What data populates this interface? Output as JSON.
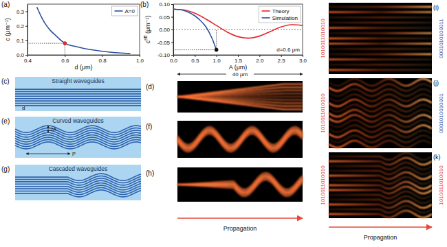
{
  "chart_data": [
    {
      "type": "line",
      "panel_label": "(a)",
      "x_label": "d (μm)",
      "y_label": "c (μm⁻¹)",
      "x": [
        0.45,
        0.475,
        0.5,
        0.525,
        0.55,
        0.575,
        0.6,
        0.65,
        0.7,
        0.75,
        0.8,
        0.85,
        0.9,
        0.95
      ],
      "series": [
        {
          "name": "A=0",
          "color": "#2b4f9e",
          "values": [
            0.33,
            0.26,
            0.205,
            0.165,
            0.135,
            0.105,
            0.08,
            0.06,
            0.045,
            0.034,
            0.025,
            0.018,
            0.013,
            0.009
          ]
        }
      ],
      "highlight": {
        "x": 0.6,
        "y": 0.08,
        "color": "#e3262a"
      },
      "xlim": [
        0.4,
        1.0
      ],
      "ylim": [
        0,
        0.35
      ],
      "xticks": [
        0.4,
        0.6,
        0.8,
        {
          "value": 1,
          "label": "1.0"
        }
      ],
      "yticks": [
        {
          "value": 0,
          "label": "0.0"
        },
        0.1,
        0.2,
        0.3
      ],
      "legend": "upper right"
    },
    {
      "type": "line",
      "panel_label": "(b)",
      "x_label": "A (μm)",
      "y_label": "c",
      "y_label_superscript": "eff",
      "y_label_unit": "(μm⁻¹)",
      "annotation": "d=0.6 μm",
      "series": [
        {
          "name": "Theory",
          "color": "#e3262a",
          "x": [
            0,
            0.25,
            0.5,
            0.75,
            1,
            1.25,
            1.5,
            1.75,
            2,
            2.25,
            2.5,
            2.75,
            3
          ],
          "values": [
            0.08,
            0.077,
            0.064,
            0.042,
            0.016,
            -0.01,
            -0.028,
            -0.034,
            -0.026,
            -0.008,
            0.01,
            0.019,
            0.016
          ]
        },
        {
          "name": "Simulation",
          "color": "#2b4f9e",
          "x": [
            0,
            0.2,
            0.4,
            0.6,
            0.75,
            0.9,
            1.0
          ],
          "values": [
            0.08,
            0.077,
            0.064,
            0.04,
            0.012,
            -0.035,
            -0.08
          ]
        }
      ],
      "highlight": {
        "x": 1.0,
        "y": -0.08,
        "color": "#111111"
      },
      "xlim": [
        0,
        3
      ],
      "ylim": [
        -0.1,
        0.1
      ],
      "xticks": [
        {
          "value": 0,
          "label": "0.0"
        },
        0.5,
        {
          "value": 1,
          "label": "1.0"
        },
        1.5,
        {
          "value": 2,
          "label": "2.0"
        },
        2.5,
        {
          "value": 3,
          "label": "3.0"
        }
      ],
      "yticks": [
        {
          "value": -0.1,
          "label": "-0.10"
        },
        -0.05,
        {
          "value": 0,
          "label": "0.00"
        },
        0.05,
        {
          "value": 0.1,
          "label": "0.10"
        }
      ],
      "legend": "upper right"
    }
  ],
  "figure": {
    "schematics": [
      {
        "panel_label": "(c)",
        "title": "Straight waveguides",
        "kind": "straight",
        "annotations": [
          "d"
        ]
      },
      {
        "panel_label": "(e)",
        "title": "Curved waveguides",
        "kind": "curved",
        "annotations": [
          "2A",
          "P"
        ]
      },
      {
        "panel_label": "(g)",
        "title": "Cascaded waveguides",
        "kind": "cascaded",
        "annotations": []
      }
    ],
    "propagation_images": [
      {
        "panel_label": "(d)",
        "kind": "straight"
      },
      {
        "panel_label": "(f)",
        "kind": "curved"
      },
      {
        "panel_label": "(h)",
        "kind": "cascaded"
      }
    ],
    "scale_bar": "40 μm",
    "propagation_label": "Propagation",
    "encoded_images": [
      {
        "panel_label": "(i)",
        "kind": "straight",
        "input_bits": "1010011010010",
        "output_bits": "0001010100011",
        "input_color": "#e8473a",
        "output_color": "#3a55a5"
      },
      {
        "panel_label": "(j)",
        "kind": "curved",
        "input_bits": "1010011010010",
        "output_bits": "0001010010001",
        "input_color": "#e8473a",
        "output_color": "#3a55a5"
      },
      {
        "panel_label": "(k)",
        "kind": "cascaded",
        "input_bits": "1010011010010",
        "output_bits": "1010011010010",
        "input_color": "#e8473a",
        "output_color": "#e8473a"
      }
    ]
  }
}
